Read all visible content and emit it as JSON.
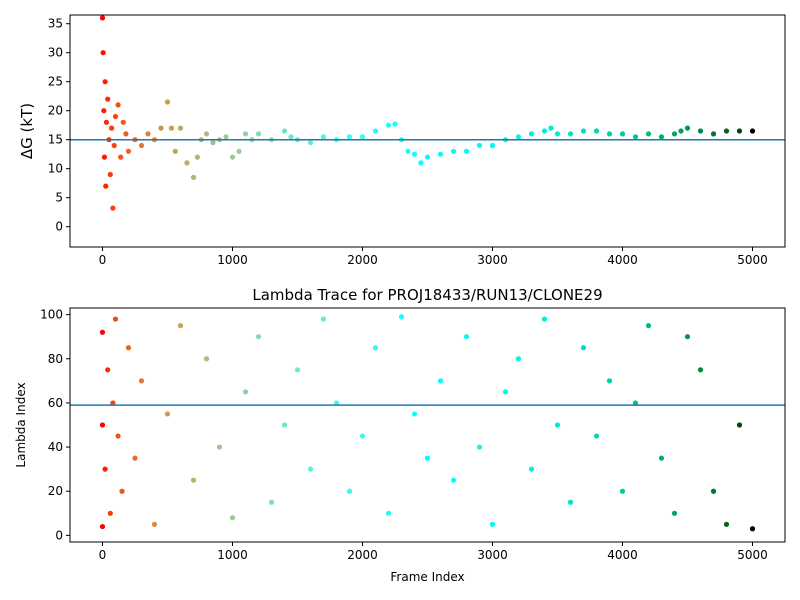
{
  "chart_data": [
    {
      "type": "scatter",
      "title": "",
      "xlabel": "",
      "ylabel": "ΔG (kT)",
      "xlim": [
        -250,
        5250
      ],
      "ylim": [
        -3.5,
        36.5
      ],
      "xticks": [
        0,
        1000,
        2000,
        3000,
        4000,
        5000
      ],
      "xtick_labels": [
        "0",
        "1000",
        "2000",
        "3000",
        "4000",
        "5000"
      ],
      "yticks": [
        0,
        5,
        10,
        15,
        20,
        25,
        30,
        35
      ],
      "ytick_labels": [
        "0",
        "5",
        "10",
        "15",
        "20",
        "25",
        "30",
        "35"
      ],
      "hline": 15,
      "hline_color": "#1f77b4",
      "colormap": "rainbow",
      "grid": false,
      "series": [
        {
          "x": [
            0,
            5,
            10,
            15,
            20,
            25,
            30,
            40,
            50,
            60,
            70,
            80,
            90,
            100,
            120,
            140,
            160,
            180,
            200,
            250,
            300,
            350,
            400,
            450,
            500,
            530,
            560,
            600,
            650,
            700,
            730,
            760,
            800,
            850,
            900,
            950,
            1000,
            1050,
            1100,
            1150,
            1200,
            1300,
            1400,
            1450,
            1500,
            1600,
            1700,
            1800,
            1900,
            2000,
            2100,
            2200,
            2250,
            2300,
            2350,
            2400,
            2450,
            2500,
            2600,
            2700,
            2800,
            2900,
            3000,
            3100,
            3200,
            3300,
            3400,
            3450,
            3500,
            3600,
            3700,
            3800,
            3900,
            4000,
            4100,
            4200,
            4300,
            4400,
            4450,
            4500,
            4600,
            4700,
            4800,
            4900,
            5000
          ],
          "y": [
            36,
            30,
            20,
            12,
            25,
            7,
            18,
            22,
            15,
            9,
            17,
            3.2,
            14,
            19,
            21,
            12,
            18,
            16,
            13,
            15,
            14,
            16,
            15,
            17,
            21.5,
            17,
            13,
            17,
            11,
            8.5,
            12,
            15,
            16,
            14.5,
            15,
            15.5,
            12,
            13,
            16,
            15,
            16,
            15,
            16.5,
            15.5,
            15,
            14.5,
            15.5,
            15,
            15.5,
            15.5,
            16.5,
            17.5,
            17.7,
            15,
            13,
            12.5,
            11,
            12,
            12.5,
            13,
            13,
            14,
            14,
            15,
            15.5,
            16,
            16.5,
            17,
            16,
            16,
            16.5,
            16.5,
            16,
            16,
            15.5,
            16,
            15.5,
            16,
            16.5,
            17,
            16.5,
            16,
            16.5,
            16.5,
            16.5
          ]
        }
      ]
    },
    {
      "type": "scatter",
      "title": "Lambda Trace for PROJ18433/RUN13/CLONE29",
      "xlabel": "Frame Index",
      "ylabel": "Lambda Index",
      "xlim": [
        -250,
        5250
      ],
      "ylim": [
        -3,
        103
      ],
      "xticks": [
        0,
        1000,
        2000,
        3000,
        4000,
        5000
      ],
      "xtick_labels": [
        "0",
        "1000",
        "2000",
        "3000",
        "4000",
        "5000"
      ],
      "yticks": [
        0,
        20,
        40,
        60,
        80,
        100
      ],
      "ytick_labels": [
        "0",
        "20",
        "40",
        "60",
        "80",
        "100"
      ],
      "hline": 59,
      "hline_color": "#1f77b4",
      "colormap": "rainbow",
      "grid": false,
      "series": [
        {
          "x": [
            0,
            0,
            0,
            20,
            40,
            60,
            80,
            100,
            120,
            150,
            200,
            250,
            300,
            400,
            500,
            600,
            700,
            800,
            900,
            1000,
            1100,
            1200,
            1300,
            1400,
            1500,
            1600,
            1700,
            1800,
            1900,
            2000,
            2100,
            2200,
            2300,
            2400,
            2500,
            2600,
            2700,
            2800,
            2900,
            3000,
            3100,
            3200,
            3300,
            3400,
            3500,
            3600,
            3700,
            3800,
            3900,
            4000,
            4100,
            4200,
            4300,
            4400,
            4500,
            4600,
            4700,
            4800,
            4900,
            5000
          ],
          "y": [
            4,
            50,
            92,
            30,
            75,
            10,
            60,
            98,
            45,
            20,
            85,
            35,
            70,
            5,
            55,
            95,
            25,
            80,
            40,
            8,
            65,
            90,
            15,
            50,
            75,
            30,
            98,
            60,
            20,
            45,
            85,
            10,
            99,
            55,
            35,
            70,
            25,
            90,
            40,
            5,
            65,
            80,
            30,
            98,
            50,
            15,
            85,
            45,
            70,
            20,
            60,
            95,
            35,
            10,
            90,
            75,
            20,
            5,
            50,
            3
          ]
        }
      ]
    }
  ]
}
